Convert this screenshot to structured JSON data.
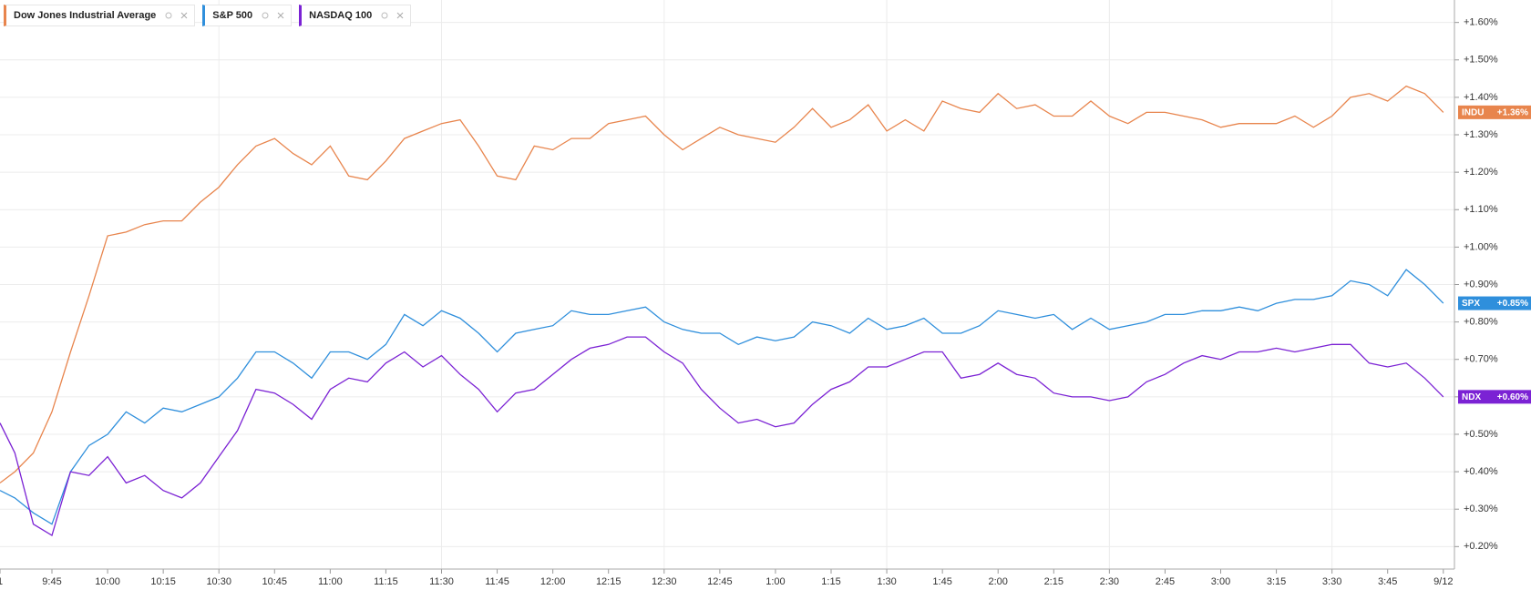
{
  "chart_data": {
    "type": "line",
    "x": [
      "9:31",
      "9:35",
      "9:40",
      "9:45",
      "9:50",
      "9:55",
      "10:00",
      "10:05",
      "10:10",
      "10:15",
      "10:20",
      "10:25",
      "10:30",
      "10:35",
      "10:40",
      "10:45",
      "10:50",
      "10:55",
      "11:00",
      "11:05",
      "11:10",
      "11:15",
      "11:20",
      "11:25",
      "11:30",
      "11:35",
      "11:40",
      "11:45",
      "11:50",
      "11:55",
      "12:00",
      "12:05",
      "12:10",
      "12:15",
      "12:20",
      "12:25",
      "12:30",
      "12:35",
      "12:40",
      "12:45",
      "12:50",
      "12:55",
      "1:00",
      "1:05",
      "1:10",
      "1:15",
      "1:20",
      "1:25",
      "1:30",
      "1:35",
      "1:40",
      "1:45",
      "1:50",
      "1:55",
      "2:00",
      "2:05",
      "2:10",
      "2:15",
      "2:20",
      "2:25",
      "2:30",
      "2:35",
      "2:40",
      "2:45",
      "2:50",
      "2:55",
      "3:00",
      "3:05",
      "3:10",
      "3:15",
      "3:20",
      "3:25",
      "3:30",
      "3:35",
      "3:40",
      "3:45",
      "3:50",
      "3:55",
      "4:00"
    ],
    "series": [
      {
        "name": "Dow Jones Industrial Average",
        "ticker": "INDU",
        "last_label": "+1.36%",
        "color": "#e8854d",
        "values": [
          0.37,
          0.4,
          0.45,
          0.56,
          0.72,
          0.87,
          1.03,
          1.04,
          1.06,
          1.07,
          1.07,
          1.12,
          1.16,
          1.22,
          1.27,
          1.29,
          1.25,
          1.22,
          1.27,
          1.19,
          1.18,
          1.23,
          1.29,
          1.31,
          1.33,
          1.34,
          1.27,
          1.19,
          1.18,
          1.27,
          1.26,
          1.29,
          1.29,
          1.33,
          1.34,
          1.35,
          1.3,
          1.26,
          1.29,
          1.32,
          1.3,
          1.29,
          1.28,
          1.32,
          1.37,
          1.32,
          1.34,
          1.38,
          1.31,
          1.34,
          1.31,
          1.39,
          1.37,
          1.36,
          1.41,
          1.37,
          1.38,
          1.35,
          1.35,
          1.39,
          1.35,
          1.33,
          1.36,
          1.36,
          1.35,
          1.34,
          1.32,
          1.33,
          1.33,
          1.33,
          1.35,
          1.32,
          1.35,
          1.4,
          1.41,
          1.39,
          1.43,
          1.41,
          1.36
        ]
      },
      {
        "name": "S&P 500",
        "ticker": "SPX",
        "last_label": "+0.85%",
        "color": "#2f8fdc",
        "values": [
          0.35,
          0.33,
          0.29,
          0.26,
          0.4,
          0.47,
          0.5,
          0.56,
          0.53,
          0.57,
          0.56,
          0.58,
          0.6,
          0.65,
          0.72,
          0.72,
          0.69,
          0.65,
          0.72,
          0.72,
          0.7,
          0.74,
          0.82,
          0.79,
          0.83,
          0.81,
          0.77,
          0.72,
          0.77,
          0.78,
          0.79,
          0.83,
          0.82,
          0.82,
          0.83,
          0.84,
          0.8,
          0.78,
          0.77,
          0.77,
          0.74,
          0.76,
          0.75,
          0.76,
          0.8,
          0.79,
          0.77,
          0.81,
          0.78,
          0.79,
          0.81,
          0.77,
          0.77,
          0.79,
          0.83,
          0.82,
          0.81,
          0.82,
          0.78,
          0.81,
          0.78,
          0.79,
          0.8,
          0.82,
          0.82,
          0.83,
          0.83,
          0.84,
          0.83,
          0.85,
          0.86,
          0.86,
          0.87,
          0.91,
          0.9,
          0.87,
          0.94,
          0.9,
          0.85
        ]
      },
      {
        "name": "NASDAQ 100",
        "ticker": "NDX",
        "last_label": "+0.60%",
        "color": "#7b22d4",
        "values": [
          0.53,
          0.45,
          0.26,
          0.23,
          0.4,
          0.39,
          0.44,
          0.37,
          0.39,
          0.35,
          0.33,
          0.37,
          0.44,
          0.51,
          0.62,
          0.61,
          0.58,
          0.54,
          0.62,
          0.65,
          0.64,
          0.69,
          0.72,
          0.68,
          0.71,
          0.66,
          0.62,
          0.56,
          0.61,
          0.62,
          0.66,
          0.7,
          0.73,
          0.74,
          0.76,
          0.76,
          0.72,
          0.69,
          0.62,
          0.57,
          0.53,
          0.54,
          0.52,
          0.53,
          0.58,
          0.62,
          0.64,
          0.68,
          0.68,
          0.7,
          0.72,
          0.72,
          0.65,
          0.66,
          0.69,
          0.66,
          0.65,
          0.61,
          0.6,
          0.6,
          0.59,
          0.6,
          0.64,
          0.66,
          0.69,
          0.71,
          0.7,
          0.72,
          0.72,
          0.73,
          0.72,
          0.73,
          0.74,
          0.74,
          0.69,
          0.68,
          0.69,
          0.65,
          0.6
        ]
      }
    ],
    "xlim": [
      "9:31",
      "4:03"
    ],
    "xticks": [
      {
        "value": "9:31",
        "label": "1"
      },
      "9:45",
      "10:00",
      "10:15",
      "10:30",
      "10:45",
      "11:00",
      "11:15",
      "11:30",
      "11:45",
      "12:00",
      "12:15",
      "12:30",
      "12:45",
      "1:00",
      "1:15",
      "1:30",
      "1:45",
      "2:00",
      "2:15",
      "2:30",
      "2:45",
      "3:00",
      "3:15",
      "3:30",
      "3:45",
      {
        "value": "4:00",
        "label": "9/12"
      }
    ],
    "ylim": [
      0.14,
      1.66
    ],
    "yticks": [
      {
        "value": 0.2,
        "label": "+0.20%"
      },
      {
        "value": 0.3,
        "label": "+0.30%"
      },
      {
        "value": 0.4,
        "label": "+0.40%"
      },
      {
        "value": 0.5,
        "label": "+0.50%"
      },
      {
        "value": 0.6,
        "label": "+0.60%"
      },
      {
        "value": 0.7,
        "label": "+0.70%"
      },
      {
        "value": 0.8,
        "label": "+0.80%"
      },
      {
        "value": 0.9,
        "label": "+0.90%"
      },
      {
        "value": 1.0,
        "label": "+1.00%"
      },
      {
        "value": 1.1,
        "label": "+1.10%"
      },
      {
        "value": 1.2,
        "label": "+1.20%"
      },
      {
        "value": 1.3,
        "label": "+1.30%"
      },
      {
        "value": 1.4,
        "label": "+1.40%"
      },
      {
        "value": 1.5,
        "label": "+1.50%"
      },
      {
        "value": 1.6,
        "label": "+1.60%"
      }
    ],
    "grid": true,
    "legend": "top-left"
  }
}
